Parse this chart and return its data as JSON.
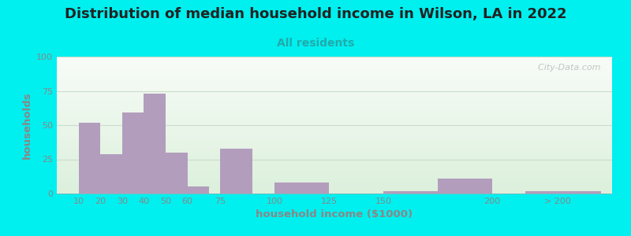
{
  "title": "Distribution of median household income in Wilson, LA in 2022",
  "subtitle": "All residents",
  "xlabel": "household income ($1000)",
  "ylabel": "households",
  "title_fontsize": 13,
  "subtitle_fontsize": 10,
  "label_fontsize": 9.5,
  "bar_color": "#b39dbd",
  "background_outer": "#00efef",
  "ylim": [
    0,
    100
  ],
  "yticks": [
    0,
    25,
    50,
    75,
    100
  ],
  "values": [
    52,
    29,
    59,
    73,
    30,
    5,
    33,
    8,
    0,
    2,
    11,
    2
  ],
  "bar_lefts": [
    10,
    20,
    30,
    40,
    50,
    60,
    75,
    100,
    125,
    150,
    175,
    215
  ],
  "bar_widths": [
    10,
    10,
    10,
    10,
    10,
    10,
    15,
    25,
    25,
    25,
    25,
    35
  ],
  "xtick_positions": [
    10,
    20,
    30,
    40,
    50,
    60,
    75,
    100,
    125,
    150,
    200,
    230
  ],
  "xtick_labels": [
    "10",
    "20",
    "30",
    "40",
    "50",
    "60",
    "75",
    "100",
    "125",
    "150",
    "200",
    "> 200"
  ],
  "xlim": [
    0,
    255
  ],
  "watermark": "  City-Data.com",
  "grid_color": "#ccddcc",
  "title_color": "#222222",
  "subtitle_color": "#22aaaa",
  "axis_color": "#888888"
}
